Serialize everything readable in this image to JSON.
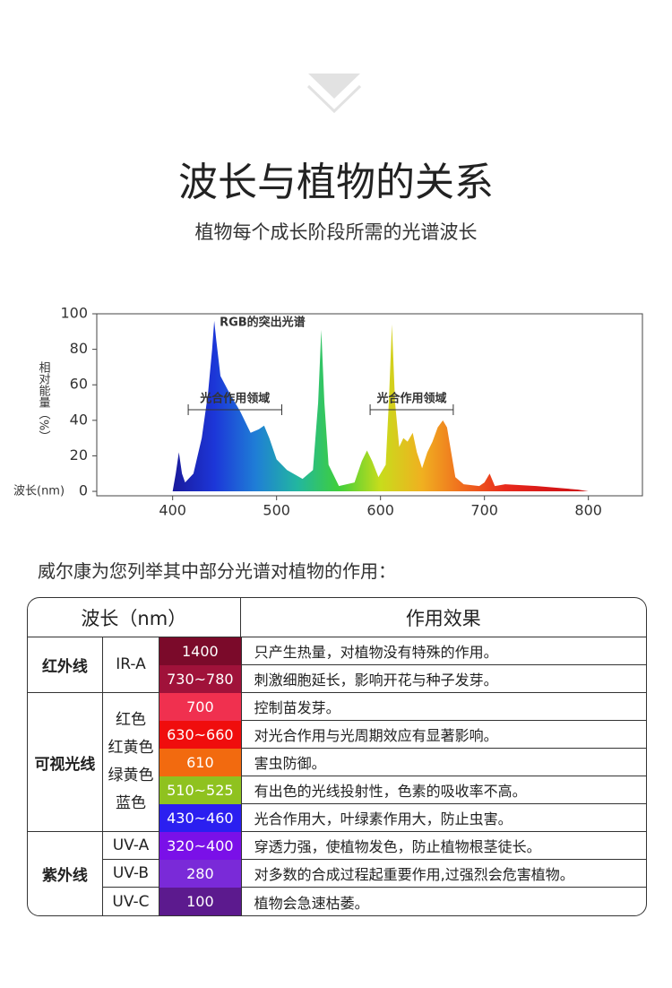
{
  "header": {
    "title": "波长与植物的关系",
    "subtitle": "植物每个成长阶段所需的光谱波长"
  },
  "chart_data": {
    "type": "area",
    "x_label": "波长(nm)",
    "y_label": "相对能量（%）",
    "x": [
      400,
      403,
      406,
      409,
      412,
      420,
      428,
      434,
      438,
      440,
      442,
      446,
      455,
      465,
      475,
      483,
      488,
      493,
      500,
      510,
      525,
      535,
      540,
      543,
      546,
      550,
      560,
      575,
      582,
      587,
      592,
      598,
      605,
      608,
      611,
      614,
      618,
      622,
      626,
      631,
      635,
      640,
      645,
      650,
      655,
      660,
      664,
      668,
      672,
      680,
      695,
      700,
      705,
      710,
      720,
      750,
      790,
      800
    ],
    "values": [
      0,
      10,
      22,
      10,
      5,
      10,
      30,
      55,
      80,
      96,
      85,
      65,
      55,
      45,
      33,
      35,
      37,
      30,
      18,
      12,
      7,
      12,
      50,
      91,
      50,
      15,
      3,
      5,
      17,
      23,
      17,
      8,
      15,
      50,
      94,
      50,
      25,
      30,
      28,
      33,
      22,
      13,
      22,
      28,
      36,
      40,
      36,
      22,
      8,
      4,
      3,
      5,
      10,
      3,
      4,
      3,
      1,
      0
    ],
    "gradient": [
      "#1a1a9c",
      "#1c36d8",
      "#1f7ed6",
      "#22b6a0",
      "#3fcf3a",
      "#c8dc1c",
      "#f0b020",
      "#f06a1e",
      "#e82a1c",
      "#d81818",
      "#cc1414"
    ],
    "xlim": [
      327,
      852
    ],
    "ylim": [
      -2.5,
      100
    ],
    "xticks": [
      400,
      500,
      600,
      700,
      800
    ],
    "yticks": [
      0,
      20,
      40,
      60,
      80,
      100
    ],
    "annotations": [
      {
        "text": "RGB的突出光谱",
        "x": 440,
        "y": 96
      },
      {
        "text": "光合作用领域",
        "range": [
          415,
          505
        ],
        "y": 46
      },
      {
        "text": "光合作用领域",
        "range": [
          590,
          670
        ],
        "y": 46
      }
    ]
  },
  "section_title": "威尔康为您列举其中部分光谱对植物的作用：",
  "table": {
    "headers": [
      "波长（nm）",
      "作用效果"
    ],
    "groups": [
      {
        "name": "红外线",
        "subs": [
          "IR-A"
        ],
        "rows": [
          {
            "range": "1400",
            "effect": "只产生热量，对植物没有特殊的作用。",
            "color": "#7b0a2a"
          },
          {
            "range": "730~780",
            "effect": "刺激细胞延长，影响开花与种子发芽。",
            "color": "#a0123a"
          }
        ]
      },
      {
        "name": "可视光线",
        "subs": [
          "红色",
          "红黄色",
          "绿黄色",
          "蓝色"
        ],
        "rows": [
          {
            "range": "700",
            "effect": "控制苗发芽。",
            "color": "#f0304f"
          },
          {
            "range": "630~660",
            "effect": "对光合作用与光周期效应有显著影响。",
            "color": "#f00d0d"
          },
          {
            "range": "610",
            "effect": "害虫防御。",
            "color": "#f26a0f"
          },
          {
            "range": "510~525",
            "effect": "有出色的光线投射性，色素的吸收率不高。",
            "color": "#8fc21f"
          },
          {
            "range": "430~460",
            "effect": "光合作用大，叶绿素作用大，防止虫害。",
            "color": "#2b1ff0"
          }
        ]
      },
      {
        "name": "紫外线",
        "subs": [
          "UV-A",
          "UV-B",
          "UV-C"
        ],
        "rows": [
          {
            "range": "320~400",
            "effect": "穿透力强，使植物发色，防止植物根茎徒长。",
            "color": "#7a10e8"
          },
          {
            "range": "280",
            "effect": "对多数的合成过程起重要作用,过强烈会危害植物。",
            "color": "#7a2ad8"
          },
          {
            "range": "100",
            "effect": "植物会急速枯萎。",
            "color": "#5c1a8e"
          }
        ]
      }
    ]
  }
}
